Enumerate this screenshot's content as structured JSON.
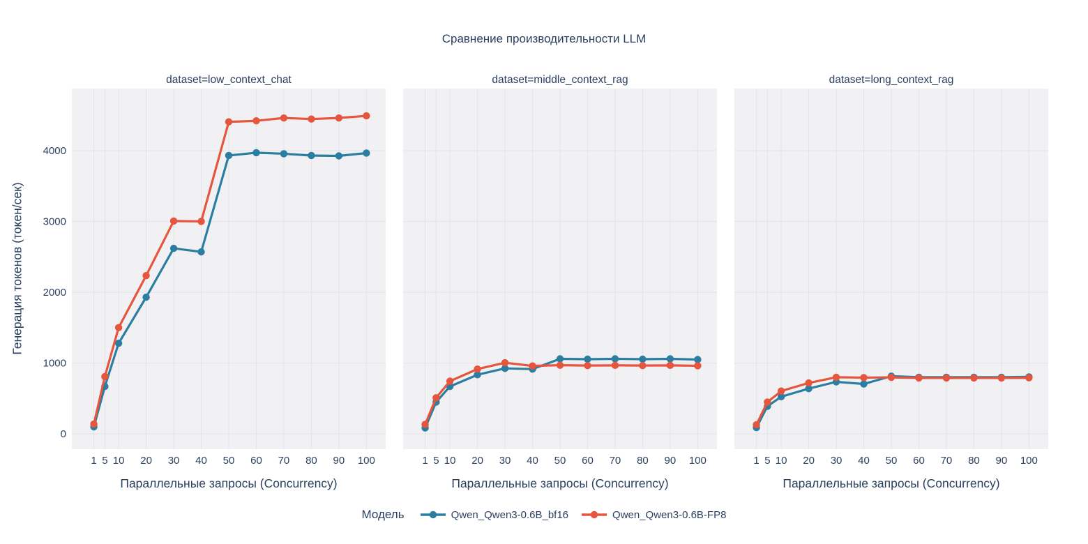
{
  "title": "Сравнение производительности LLM",
  "colors": {
    "series_bf16": "#2b7ea1",
    "series_fp8": "#e6553d",
    "text": "#2a3f5f",
    "plot_background": "#f1f1f4",
    "gridline": "#e3e4e9",
    "paper_background": "#ffffff"
  },
  "legend": {
    "title": "Модель",
    "position": "bottom-center",
    "entries": [
      {
        "label": "Qwen_Qwen3-0.6B_bf16",
        "color": "#2b7ea1"
      },
      {
        "label": "Qwen_Qwen3-0.6B-FP8",
        "color": "#e6553d"
      }
    ]
  },
  "chart_data": [
    {
      "type": "line",
      "title": "dataset=low_context_chat",
      "xlabel": "Параллельные запросы (Concurrency)",
      "ylabel": "Генерация токенов (токен/сек)",
      "x": [
        1,
        5,
        10,
        20,
        30,
        40,
        50,
        60,
        70,
        80,
        90,
        100
      ],
      "xticks": [
        1,
        5,
        10,
        20,
        30,
        40,
        50,
        60,
        70,
        80,
        90,
        100
      ],
      "yticks": [
        0,
        1000,
        2000,
        3000,
        4000
      ],
      "xlim": [
        -7,
        107
      ],
      "ylim": [
        -215,
        4875
      ],
      "grid": true,
      "markers": true,
      "series": [
        {
          "name": "Qwen_Qwen3-0.6B_bf16",
          "color": "#2b7ea1",
          "values": [
            100,
            670,
            1280,
            1930,
            2620,
            2570,
            3930,
            3970,
            3955,
            3930,
            3925,
            3965
          ]
        },
        {
          "name": "Qwen_Qwen3-0.6B-FP8",
          "color": "#e6553d",
          "values": [
            140,
            810,
            1500,
            2235,
            3005,
            3000,
            4405,
            4420,
            4460,
            4445,
            4460,
            4490
          ]
        }
      ]
    },
    {
      "type": "line",
      "title": "dataset=middle_context_rag",
      "xlabel": "Параллельные запросы (Concurrency)",
      "ylabel": "Генерация токенов (токен/сек)",
      "x": [
        1,
        5,
        10,
        20,
        30,
        40,
        50,
        60,
        70,
        80,
        90,
        100
      ],
      "xticks": [
        1,
        5,
        10,
        20,
        30,
        40,
        50,
        60,
        70,
        80,
        90,
        100
      ],
      "yticks": [
        0,
        1000,
        2000,
        3000,
        4000
      ],
      "xlim": [
        -7,
        107
      ],
      "ylim": [
        -215,
        4875
      ],
      "grid": true,
      "markers": true,
      "series": [
        {
          "name": "Qwen_Qwen3-0.6B_bf16",
          "color": "#2b7ea1",
          "values": [
            85,
            450,
            670,
            835,
            925,
            915,
            1060,
            1055,
            1060,
            1055,
            1060,
            1050
          ]
        },
        {
          "name": "Qwen_Qwen3-0.6B-FP8",
          "color": "#e6553d",
          "values": [
            135,
            510,
            745,
            915,
            1005,
            960,
            970,
            965,
            968,
            965,
            968,
            962
          ]
        }
      ]
    },
    {
      "type": "line",
      "title": "dataset=long_context_rag",
      "xlabel": "Параллельные запросы (Concurrency)",
      "ylabel": "Генерация токенов (токен/сек)",
      "x": [
        1,
        5,
        10,
        20,
        30,
        40,
        50,
        60,
        70,
        80,
        90,
        100
      ],
      "xticks": [
        1,
        5,
        10,
        20,
        30,
        40,
        50,
        60,
        70,
        80,
        90,
        100
      ],
      "yticks": [
        0,
        1000,
        2000,
        3000,
        4000
      ],
      "xlim": [
        -7,
        107
      ],
      "ylim": [
        -215,
        4875
      ],
      "grid": true,
      "markers": true,
      "series": [
        {
          "name": "Qwen_Qwen3-0.6B_bf16",
          "color": "#2b7ea1",
          "values": [
            90,
            390,
            525,
            640,
            735,
            705,
            815,
            800,
            800,
            800,
            800,
            805
          ]
        },
        {
          "name": "Qwen_Qwen3-0.6B-FP8",
          "color": "#e6553d",
          "values": [
            130,
            450,
            605,
            720,
            800,
            795,
            798,
            790,
            790,
            790,
            790,
            792
          ]
        }
      ]
    }
  ]
}
